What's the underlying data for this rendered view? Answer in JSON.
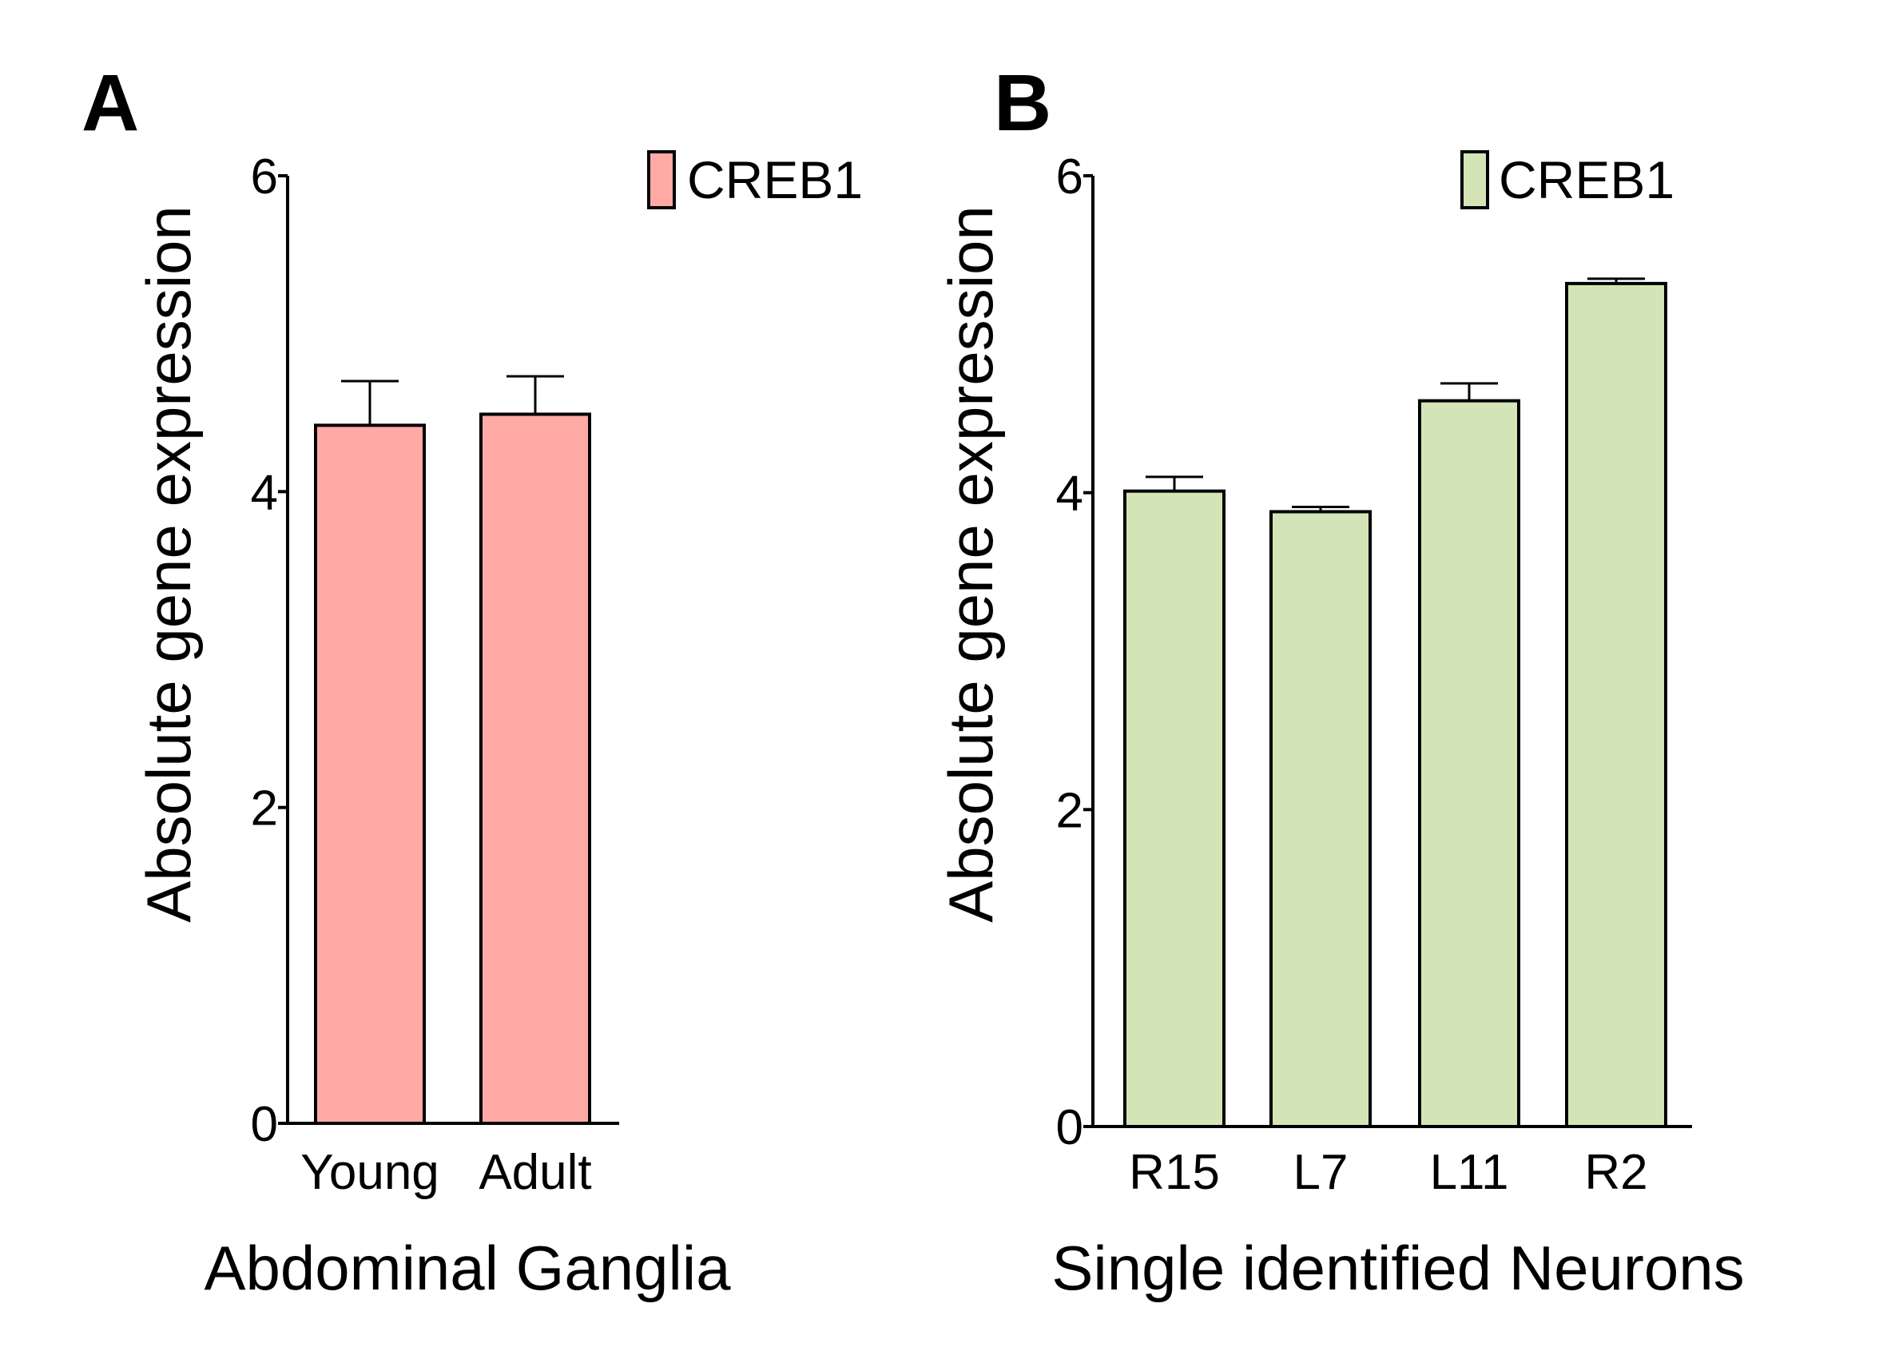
{
  "chart_data": [
    {
      "type": "bar",
      "panel": "A",
      "legend": "CREB1",
      "legend_placement": "top-right",
      "color": "#ffaaa4",
      "categories": [
        "Young",
        "Adult"
      ],
      "values": [
        4.42,
        4.49
      ],
      "errors": [
        0.28,
        0.24
      ],
      "xlabel": "Abdominal Ganglia",
      "ylabel": "Absolute gene expression",
      "ylim": [
        0,
        6
      ],
      "yticks": [
        0,
        2,
        4,
        6
      ],
      "grid": false
    },
    {
      "type": "bar",
      "panel": "B",
      "legend": "CREB1",
      "legend_placement": "top-right",
      "color": "#d3e5b7",
      "categories": [
        "R15",
        "L7",
        "L11",
        "R2"
      ],
      "values": [
        4.01,
        3.88,
        4.58,
        5.32
      ],
      "errors": [
        0.09,
        0.03,
        0.11,
        0.03
      ],
      "xlabel": "Single identified Neurons",
      "ylabel": "Absolute gene expression",
      "ylim": [
        0,
        6
      ],
      "yticks": [
        0,
        2,
        4,
        6
      ],
      "grid": false
    }
  ]
}
